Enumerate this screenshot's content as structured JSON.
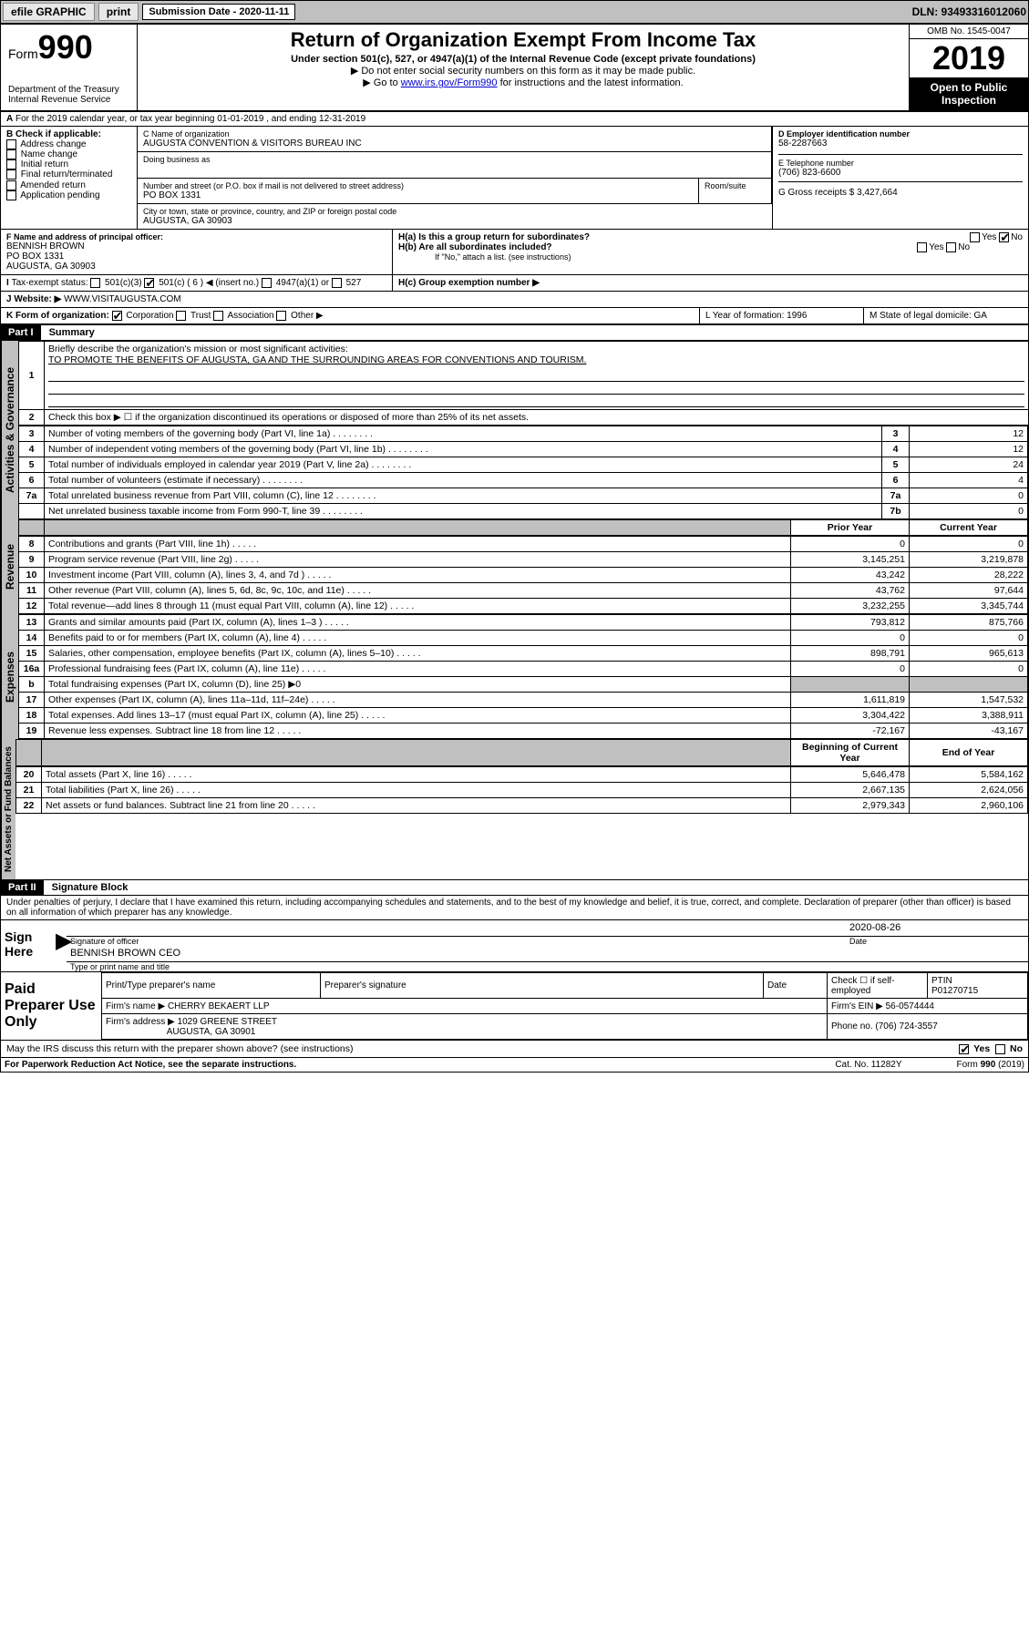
{
  "topbar": {
    "efile": "efile GRAPHIC",
    "print": "print",
    "sub_label": "Submission Date - 2020-11-11",
    "dln": "DLN: 93493316012060"
  },
  "header": {
    "form_word": "Form",
    "form_no": "990",
    "dept": "Department of the Treasury",
    "irs": "Internal Revenue Service",
    "title": "Return of Organization Exempt From Income Tax",
    "subtitle": "Under section 501(c), 527, or 4947(a)(1) of the Internal Revenue Code (except private foundations)",
    "note1": "▶ Do not enter social security numbers on this form as it may be made public.",
    "note2_pre": "▶ Go to ",
    "note2_link": "www.irs.gov/Form990",
    "note2_post": " for instructions and the latest information.",
    "omb": "OMB No. 1545-0047",
    "year": "2019",
    "open": "Open to Public Inspection"
  },
  "period": "For the 2019 calendar year, or tax year beginning 01-01-2019   , and ending 12-31-2019",
  "boxB": {
    "label": "B Check if applicable:",
    "opts": [
      "Address change",
      "Name change",
      "Initial return",
      "Final return/terminated",
      "Amended return",
      "Application pending"
    ]
  },
  "boxC": {
    "name_label": "C Name of organization",
    "name": "AUGUSTA CONVENTION & VISITORS BUREAU INC",
    "dba_label": "Doing business as",
    "addr_label": "Number and street (or P.O. box if mail is not delivered to street address)",
    "room_label": "Room/suite",
    "addr": "PO BOX 1331",
    "city_label": "City or town, state or province, country, and ZIP or foreign postal code",
    "city": "AUGUSTA, GA  30903"
  },
  "boxD": {
    "label": "D Employer identification number",
    "val": "58-2287663"
  },
  "boxE": {
    "label": "E Telephone number",
    "val": "(706) 823-6600"
  },
  "boxG": {
    "label": "G Gross receipts $ 3,427,664"
  },
  "boxF": {
    "label": "F  Name and address of principal officer:",
    "name": "BENNISH BROWN",
    "addr1": "PO BOX 1331",
    "addr2": "AUGUSTA, GA  30903"
  },
  "boxH": {
    "a": "H(a)  Is this a group return for subordinates?",
    "b": "H(b)  Are all subordinates included?",
    "b_note": "If \"No,\" attach a list. (see instructions)",
    "c": "H(c)  Group exemption number ▶",
    "yes": "Yes",
    "no": "No"
  },
  "boxI": {
    "label": "Tax-exempt status:",
    "o1": "501(c)(3)",
    "o2": "501(c) ( 6 ) ◀ (insert no.)",
    "o3": "4947(a)(1) or",
    "o4": "527"
  },
  "boxJ": {
    "label": "Website: ▶",
    "val": "WWW.VISITAUGUSTA.COM"
  },
  "boxK": {
    "label": "K Form of organization:",
    "o1": "Corporation",
    "o2": "Trust",
    "o3": "Association",
    "o4": "Other ▶"
  },
  "boxL": {
    "label": "L Year of formation: 1996"
  },
  "boxM": {
    "label": "M State of legal domicile: GA"
  },
  "part1": {
    "num": "Part I",
    "title": "Summary"
  },
  "summary": {
    "l1_label": "Briefly describe the organization's mission or most significant activities:",
    "l1_text": "TO PROMOTE THE BENEFITS OF AUGUSTA, GA AND THE SURROUNDING AREAS FOR CONVENTIONS AND TOURISM.",
    "l2": "Check this box ▶ ☐  if the organization discontinued its operations or disposed of more than 25% of its net assets.",
    "rows_ag": [
      {
        "n": "3",
        "t": "Number of voting members of the governing body (Part VI, line 1a)",
        "box": "3",
        "v": "12"
      },
      {
        "n": "4",
        "t": "Number of independent voting members of the governing body (Part VI, line 1b)",
        "box": "4",
        "v": "12"
      },
      {
        "n": "5",
        "t": "Total number of individuals employed in calendar year 2019 (Part V, line 2a)",
        "box": "5",
        "v": "24"
      },
      {
        "n": "6",
        "t": "Total number of volunteers (estimate if necessary)",
        "box": "6",
        "v": "4"
      },
      {
        "n": "7a",
        "t": "Total unrelated business revenue from Part VIII, column (C), line 12",
        "box": "7a",
        "v": "0"
      },
      {
        "n": "",
        "t": "Net unrelated business taxable income from Form 990-T, line 39",
        "box": "7b",
        "v": "0"
      }
    ],
    "col_prior": "Prior Year",
    "col_curr": "Current Year",
    "rev": [
      {
        "n": "8",
        "t": "Contributions and grants (Part VIII, line 1h)",
        "p": "0",
        "c": "0"
      },
      {
        "n": "9",
        "t": "Program service revenue (Part VIII, line 2g)",
        "p": "3,145,251",
        "c": "3,219,878"
      },
      {
        "n": "10",
        "t": "Investment income (Part VIII, column (A), lines 3, 4, and 7d )",
        "p": "43,242",
        "c": "28,222"
      },
      {
        "n": "11",
        "t": "Other revenue (Part VIII, column (A), lines 5, 6d, 8c, 9c, 10c, and 11e)",
        "p": "43,762",
        "c": "97,644"
      },
      {
        "n": "12",
        "t": "Total revenue—add lines 8 through 11 (must equal Part VIII, column (A), line 12)",
        "p": "3,232,255",
        "c": "3,345,744"
      }
    ],
    "exp": [
      {
        "n": "13",
        "t": "Grants and similar amounts paid (Part IX, column (A), lines 1–3 )",
        "p": "793,812",
        "c": "875,766"
      },
      {
        "n": "14",
        "t": "Benefits paid to or for members (Part IX, column (A), line 4)",
        "p": "0",
        "c": "0"
      },
      {
        "n": "15",
        "t": "Salaries, other compensation, employee benefits (Part IX, column (A), lines 5–10)",
        "p": "898,791",
        "c": "965,613"
      },
      {
        "n": "16a",
        "t": "Professional fundraising fees (Part IX, column (A), line 11e)",
        "p": "0",
        "c": "0"
      },
      {
        "n": "b",
        "t": "Total fundraising expenses (Part IX, column (D), line 25) ▶0",
        "p": "",
        "c": "",
        "gray": true
      },
      {
        "n": "17",
        "t": "Other expenses (Part IX, column (A), lines 11a–11d, 11f–24e)",
        "p": "1,611,819",
        "c": "1,547,532"
      },
      {
        "n": "18",
        "t": "Total expenses. Add lines 13–17 (must equal Part IX, column (A), line 25)",
        "p": "3,304,422",
        "c": "3,388,911"
      },
      {
        "n": "19",
        "t": "Revenue less expenses. Subtract line 18 from line 12",
        "p": "-72,167",
        "c": "-43,167"
      }
    ],
    "col_beg": "Beginning of Current Year",
    "col_end": "End of Year",
    "na": [
      {
        "n": "20",
        "t": "Total assets (Part X, line 16)",
        "p": "5,646,478",
        "c": "5,584,162"
      },
      {
        "n": "21",
        "t": "Total liabilities (Part X, line 26)",
        "p": "2,667,135",
        "c": "2,624,056"
      },
      {
        "n": "22",
        "t": "Net assets or fund balances. Subtract line 21 from line 20",
        "p": "2,979,343",
        "c": "2,960,106"
      }
    ],
    "tab_ag": "Activities & Governance",
    "tab_rev": "Revenue",
    "tab_exp": "Expenses",
    "tab_na": "Net Assets or Fund Balances"
  },
  "part2": {
    "num": "Part II",
    "title": "Signature Block"
  },
  "perjury": "Under penalties of perjury, I declare that I have examined this return, including accompanying schedules and statements, and to the best of my knowledge and belief, it is true, correct, and complete. Declaration of preparer (other than officer) is based on all information of which preparer has any knowledge.",
  "sign": {
    "here": "Sign Here",
    "sig_label": "Signature of officer",
    "date": "2020-08-26",
    "date_label": "Date",
    "name": "BENNISH BROWN CEO",
    "name_label": "Type or print name and title"
  },
  "prep": {
    "title": "Paid Preparer Use Only",
    "h1": "Print/Type preparer's name",
    "h2": "Preparer's signature",
    "h3": "Date",
    "h4_check": "Check ☐ if self-employed",
    "h5": "PTIN",
    "ptin": "P01270715",
    "firm_label": "Firm's name    ▶",
    "firm": "CHERRY BEKAERT LLP",
    "ein_label": "Firm's EIN ▶",
    "ein": "56-0574444",
    "addr_label": "Firm's address ▶",
    "addr1": "1029 GREENE STREET",
    "addr2": "AUGUSTA, GA  30901",
    "phone_label": "Phone no.",
    "phone": "(706) 724-3557"
  },
  "discuss": {
    "q": "May the IRS discuss this return with the preparer shown above? (see instructions)",
    "yes": "Yes",
    "no": "No"
  },
  "footer": {
    "pra": "For Paperwork Reduction Act Notice, see the separate instructions.",
    "cat": "Cat. No. 11282Y",
    "form": "Form 990 (2019)"
  }
}
